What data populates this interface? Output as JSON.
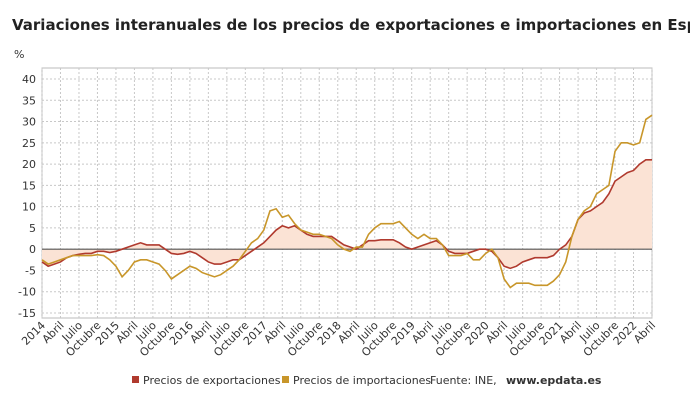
{
  "chart_data": {
    "type": "line",
    "title": "Variaciones interanuales de los precios de exportaciones e importaciones en España",
    "y_label": "%",
    "source": "Fuente: INE,",
    "source_link": "www.epdata.es",
    "categories": [
      "2014",
      null,
      null,
      "Abril",
      null,
      null,
      "Julio",
      null,
      null,
      "Octubre",
      null,
      null,
      "2015",
      null,
      null,
      "Abril",
      null,
      null,
      "Julio",
      null,
      null,
      "Octubre",
      null,
      null,
      "2016",
      null,
      null,
      "Abril",
      null,
      null,
      "Julio",
      null,
      null,
      "Octubre",
      null,
      null,
      "2017",
      null,
      null,
      "Abril",
      null,
      null,
      "Julio",
      null,
      null,
      "Octubre",
      null,
      null,
      "2018",
      null,
      null,
      "Abril",
      null,
      null,
      "Julio",
      null,
      null,
      "Octubre",
      null,
      null,
      "2019",
      null,
      null,
      "Abril",
      null,
      null,
      "Julio",
      null,
      null,
      "Octubre",
      null,
      null,
      "2020",
      null,
      null,
      "Abril",
      null,
      null,
      "Julio",
      null,
      null,
      "Octubre",
      null,
      null,
      "2021",
      null,
      null,
      "Abril",
      null,
      null,
      "Julio",
      null,
      null,
      "Octubre",
      null,
      null,
      "2022",
      null,
      null,
      "Abril"
    ],
    "series": [
      {
        "name": "Precios de exportaciones",
        "color": "#b03a2e",
        "fill": "#fbe3d5",
        "values": [
          -3,
          -4,
          -3.5,
          -3,
          -2,
          -1.5,
          -1.2,
          -1,
          -1,
          -0.5,
          -0.5,
          -0.8,
          -0.5,
          0,
          0.5,
          1,
          1.5,
          1,
          1,
          1,
          0,
          -1,
          -1.2,
          -1,
          -0.5,
          -1,
          -2,
          -3,
          -3.5,
          -3.5,
          -3,
          -2.5,
          -2.5,
          -1.5,
          -0.5,
          0.5,
          1.5,
          3,
          4.5,
          5.5,
          5,
          5.5,
          4.5,
          3.5,
          3,
          3,
          3,
          3,
          2,
          1,
          0.5,
          0,
          1,
          2,
          2,
          2.2,
          2.2,
          2.2,
          1.5,
          0.5,
          0,
          0.5,
          1,
          1.5,
          2,
          1,
          -0.5,
          -1,
          -1,
          -1,
          -0.5,
          0,
          0,
          -0.5,
          -2,
          -4,
          -4.5,
          -4,
          -3,
          -2.5,
          -2,
          -2,
          -2,
          -1.5,
          0,
          1,
          3,
          7,
          8.5,
          9,
          10,
          11,
          13,
          16,
          17,
          18,
          18.5,
          20,
          21,
          21
        ]
      },
      {
        "name": "Precios de importaciones",
        "color": "#c8962a",
        "values": [
          -2.5,
          -3.5,
          -3,
          -2.5,
          -2,
          -1.5,
          -1.5,
          -1.5,
          -1.5,
          -1.3,
          -1.5,
          -2.5,
          -4,
          -6.5,
          -5,
          -3,
          -2.5,
          -2.5,
          -3,
          -3.5,
          -5,
          -7,
          -6,
          -5,
          -4,
          -4.5,
          -5.5,
          -6,
          -6.5,
          -6,
          -5,
          -4,
          -2.5,
          -0.5,
          1.5,
          2.5,
          4.5,
          9,
          9.5,
          7.5,
          8,
          6,
          4.5,
          4,
          3.5,
          3.5,
          3,
          2.5,
          1,
          0,
          -0.5,
          0.5,
          0.5,
          3.5,
          5,
          6,
          6,
          6,
          6.5,
          5,
          3.5,
          2.5,
          3.5,
          2.5,
          2.5,
          1,
          -1.5,
          -1.5,
          -1.5,
          -1,
          -2.5,
          -2.5,
          -1,
          0,
          -2,
          -7,
          -9,
          -8,
          -8,
          -8,
          -8.5,
          -8.5,
          -8.5,
          -7.5,
          -6,
          -3,
          3,
          7,
          9,
          10,
          13,
          14,
          15,
          23,
          25,
          25,
          24.5,
          25,
          30.5,
          31.5
        ]
      }
    ],
    "ylim": [
      -15,
      40
    ],
    "yticks": [
      -15,
      -10,
      -5,
      0,
      5,
      10,
      15,
      20,
      25,
      30,
      35,
      40
    ],
    "grid": true
  }
}
